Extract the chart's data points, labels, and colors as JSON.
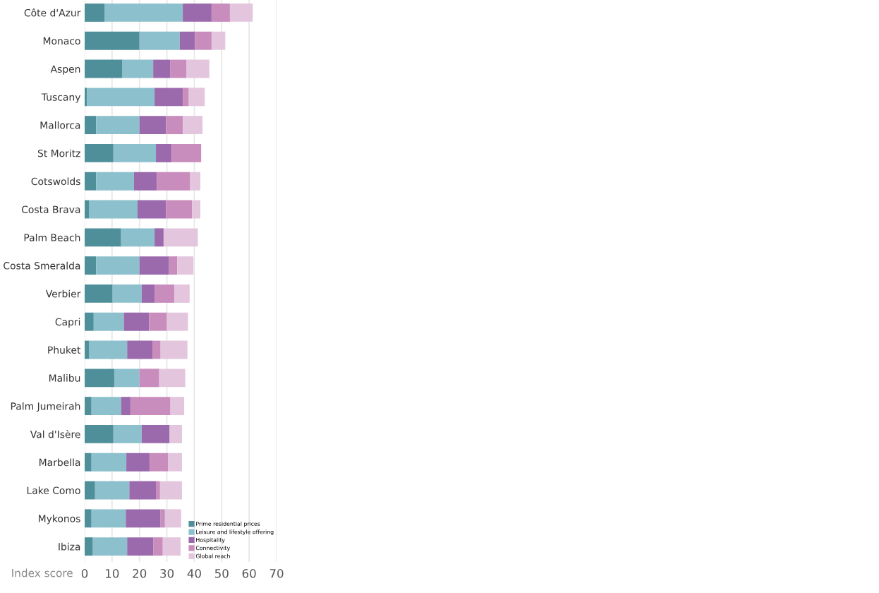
{
  "chart_data": {
    "type": "bar",
    "orientation": "horizontal",
    "stacked": true,
    "xlabel": "Index score",
    "categories": [
      "Côte d'Azur",
      "Monaco",
      "Aspen",
      "Tuscany",
      "Mallorca",
      "St Moritz",
      "Cotswolds",
      "Costa Brava",
      "Palm Beach",
      "Costa Smeralda",
      "Verbier",
      "Capri",
      "Phuket",
      "Malibu",
      "Palm Jumeirah",
      "Val d'Isère",
      "Marbella",
      "Lake Como",
      "Mykonos",
      "Ibiza"
    ],
    "series": [
      {
        "name": "Prime residential prices",
        "color": "#4e8f9a",
        "values": [
          7.2,
          20,
          13.8,
          0.8,
          4.2,
          10.5,
          4.2,
          1.7,
          13.3,
          4.2,
          10.2,
          3.3,
          1.7,
          10.8,
          2.5,
          10.5,
          2.5,
          3.8,
          2.5,
          3
        ]
      },
      {
        "name": "Leisure and lifestyle offering",
        "color": "#8cc0cc",
        "values": [
          28.6,
          14.7,
          11.2,
          24.7,
          15.8,
          15.5,
          13.8,
          17.6,
          12.2,
          15.8,
          10.6,
          11,
          13.8,
          9.2,
          10.8,
          10.3,
          12.7,
          12.5,
          12.5,
          12.5
        ]
      },
      {
        "name": "Hospitality",
        "color": "#9b6aad",
        "values": [
          10.5,
          5.5,
          6.3,
          10.3,
          9.7,
          5.7,
          8.3,
          10.4,
          3.3,
          10.8,
          4.7,
          9.2,
          9.2,
          0,
          3.4,
          10.2,
          8.6,
          9.7,
          12.7,
          9.5
        ]
      },
      {
        "name": "Connectivity",
        "color": "#c98dbd",
        "values": [
          6.7,
          6.1,
          5.9,
          2.2,
          6.1,
          10.8,
          12.2,
          9.5,
          0,
          3,
          7.2,
          6.5,
          3,
          7.2,
          14.6,
          0,
          6.7,
          1.5,
          1.6,
          3.5
        ]
      },
      {
        "name": "Global reach",
        "color": "#e3c6de",
        "values": [
          8.3,
          5,
          8.3,
          5.8,
          7.2,
          0,
          3.7,
          3,
          12.5,
          5.9,
          5.6,
          7.7,
          9.8,
          9.5,
          5,
          4.5,
          5,
          8,
          5.9,
          6.5
        ]
      }
    ],
    "xlim": [
      0,
      70
    ],
    "xticks": [
      0,
      10,
      20,
      30,
      40,
      50,
      60,
      70
    ],
    "grid": "x",
    "legend": "bottom right"
  }
}
